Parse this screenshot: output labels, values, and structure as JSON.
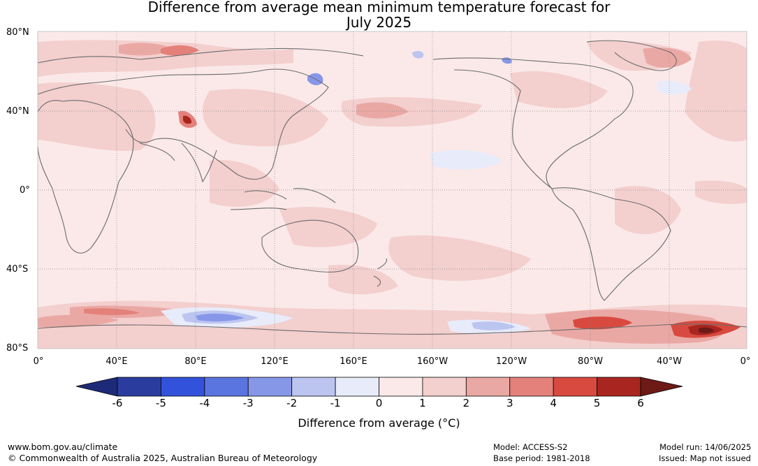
{
  "title_line1": "Difference from average mean minimum temperature forecast for",
  "title_line2": "July 2025",
  "lat_labels": [
    "80°N",
    "40°N",
    "0°",
    "40°S",
    "80°S"
  ],
  "lon_labels": [
    "0°",
    "40°E",
    "80°E",
    "120°E",
    "160°E",
    "160°W",
    "120°W",
    "80°W",
    "40°W",
    "0°"
  ],
  "colorbar": {
    "ticks": [
      "-6",
      "-5",
      "-4",
      "-3",
      "-2",
      "-1",
      "0",
      "1",
      "2",
      "3",
      "4",
      "5",
      "6"
    ],
    "colors": [
      "#2a3d9f",
      "#3352dc",
      "#5a74e0",
      "#8797e8",
      "#bcc5f0",
      "#e8ebfa",
      "#fbe9e9",
      "#f3cfce",
      "#eaa8a4",
      "#e3817a",
      "#d84a3f",
      "#a8261f"
    ],
    "under_color": "#1d2a78",
    "over_color": "#6e1a16",
    "label": "Difference from average (°C)"
  },
  "footer": {
    "site": "www.bom.gov.au/climate",
    "copyright": "© Commonwealth of Australia 2025, Australian Bureau of Meteorology",
    "model": "Model: ACCESS-S2",
    "base_period": "Base period: 1981-2018",
    "model_run": "Model run: 14/06/2025",
    "issued": "Issued: Map not issued"
  },
  "map_colors": {
    "background": "#fbe9e9",
    "coast": "#6b6b6b",
    "grid": "#888888"
  }
}
